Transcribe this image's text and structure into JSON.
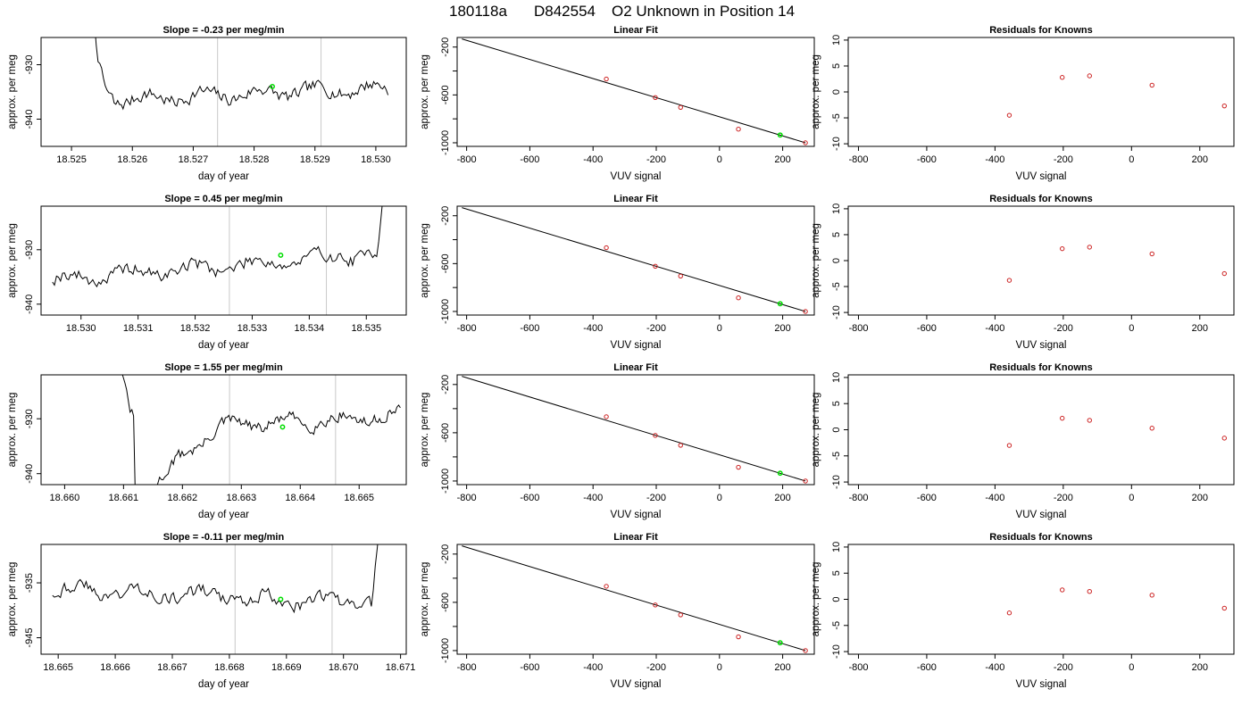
{
  "figure": {
    "header": {
      "run_id": "180118a",
      "sample_id": "D842554",
      "description": "O2 Unknown in Position  14"
    }
  },
  "chart_data": [
    {
      "type": "line",
      "title": "Slope =  -0.23  per meg/min",
      "xlabel": "day of year",
      "ylabel": "approx. per meg",
      "xlim": [
        18.5245,
        18.5305
      ],
      "ylim": [
        -945,
        -925
      ],
      "xticks": [
        18.525,
        18.526,
        18.527,
        18.528,
        18.529,
        18.53
      ],
      "xtick_labels": [
        "18.525",
        "18.526",
        "18.527",
        "18.528",
        "18.529",
        "18.530"
      ],
      "yticks": [
        -940,
        -930
      ],
      "ytick_labels": [
        "-940",
        "-930"
      ],
      "vlines": [
        18.5274,
        18.5291
      ],
      "trace": {
        "start": 18.5252,
        "end": 18.5302,
        "level": -935.5,
        "noise": 1.9,
        "drift": 2.5,
        "transient": "start-high",
        "seed": 7
      },
      "marker": {
        "x": 18.5283,
        "y": -934.0
      }
    },
    {
      "type": "line",
      "title": "Slope =  0.45  per meg/min",
      "xlabel": "day of year",
      "ylabel": "approx. per meg",
      "xlim": [
        18.5293,
        18.5357
      ],
      "ylim": [
        -942,
        -922
      ],
      "xticks": [
        18.53,
        18.531,
        18.532,
        18.533,
        18.534,
        18.535
      ],
      "xtick_labels": [
        "18.530",
        "18.531",
        "18.532",
        "18.533",
        "18.534",
        "18.535"
      ],
      "yticks": [
        -940,
        -930
      ],
      "ytick_labels": [
        "-940",
        "-930"
      ],
      "vlines": [
        18.5326,
        18.5343
      ],
      "trace": {
        "start": 18.5295,
        "end": 18.5355,
        "level": -933.0,
        "noise": 2.0,
        "drift": 5.0,
        "transient": "end-high",
        "seed": 19
      },
      "marker": {
        "x": 18.5335,
        "y": -931.0
      }
    },
    {
      "type": "line",
      "title": "Slope =  1.55  per meg/min",
      "xlabel": "day of year",
      "ylabel": "approx. per meg",
      "xlim": [
        18.6596,
        18.6658
      ],
      "ylim": [
        -942,
        -922
      ],
      "xticks": [
        18.66,
        18.661,
        18.662,
        18.663,
        18.664,
        18.665
      ],
      "xtick_labels": [
        "18.660",
        "18.661",
        "18.662",
        "18.663",
        "18.664",
        "18.665"
      ],
      "yticks": [
        -940,
        -930
      ],
      "ytick_labels": [
        "-940",
        "-930"
      ],
      "vlines": [
        18.6628,
        18.6646
      ],
      "trace": {
        "start": 18.6607,
        "end": 18.6657,
        "level": -931.0,
        "noise": 1.8,
        "drift": 3.0,
        "transient": "ramp-up",
        "seed": 31
      },
      "marker": {
        "x": 18.6637,
        "y": -931.5
      }
    },
    {
      "type": "line",
      "title": "Slope =  -0.11  per meg/min",
      "xlabel": "day of year",
      "ylabel": "approx. per meg",
      "xlim": [
        18.6647,
        18.6711
      ],
      "ylim": [
        -948,
        -928
      ],
      "xticks": [
        18.665,
        18.666,
        18.667,
        18.668,
        18.669,
        18.67,
        18.671
      ],
      "xtick_labels": [
        "18.665",
        "18.666",
        "18.667",
        "18.668",
        "18.669",
        "18.670",
        "18.671"
      ],
      "yticks": [
        -945,
        -935
      ],
      "ytick_labels": [
        "-945",
        "-935"
      ],
      "vlines": [
        18.6681,
        18.6698
      ],
      "trace": {
        "start": 18.6649,
        "end": 18.6708,
        "level": -937.5,
        "noise": 2.0,
        "drift": -3.0,
        "transient": "end-high",
        "seed": 43
      },
      "marker": {
        "x": 18.6689,
        "y": -938.0
      }
    },
    {
      "type": "scatter",
      "title": "Linear Fit",
      "xlabel": "VUV signal",
      "ylabel": "approx. per meg",
      "xlim": [
        -830,
        300
      ],
      "ylim": [
        -1030,
        -120
      ],
      "xticks": [
        -800,
        -600,
        -400,
        -200,
        0,
        200
      ],
      "xtick_labels": [
        "-800",
        "-600",
        "-400",
        "-200",
        "0",
        "200"
      ],
      "yticks": [
        -1000,
        -800,
        -600,
        -400,
        -200
      ],
      "ytick_labels": [
        "-1000",
        "",
        "-600",
        "",
        "-200"
      ],
      "fit_line": {
        "x": [
          -815,
          272
        ],
        "y": [
          -132,
          -1000
        ]
      },
      "knowns": {
        "x": [
          -358,
          -203,
          -123,
          60,
          272
        ],
        "y": [
          -467,
          -622,
          -704,
          -886,
          -1000
        ]
      },
      "unknown": {
        "x": 192,
        "y": -935
      }
    },
    {
      "type": "scatter",
      "title": "Linear Fit",
      "xlabel": "VUV signal",
      "ylabel": "approx. per meg",
      "xlim": [
        -830,
        300
      ],
      "ylim": [
        -1030,
        -120
      ],
      "xticks": [
        -800,
        -600,
        -400,
        -200,
        0,
        200
      ],
      "xtick_labels": [
        "-800",
        "-600",
        "-400",
        "-200",
        "0",
        "200"
      ],
      "yticks": [
        -1000,
        -800,
        -600,
        -400,
        -200
      ],
      "ytick_labels": [
        "-1000",
        "",
        "-600",
        "",
        "-200"
      ],
      "fit_line": {
        "x": [
          -815,
          272
        ],
        "y": [
          -132,
          -1000
        ]
      },
      "knowns": {
        "x": [
          -358,
          -203,
          -123,
          60,
          272
        ],
        "y": [
          -467,
          -622,
          -704,
          -886,
          -1000
        ]
      },
      "unknown": {
        "x": 192,
        "y": -935
      }
    },
    {
      "type": "scatter",
      "title": "Linear Fit",
      "xlabel": "VUV signal",
      "ylabel": "approx. per meg",
      "xlim": [
        -830,
        300
      ],
      "ylim": [
        -1030,
        -120
      ],
      "xticks": [
        -800,
        -600,
        -400,
        -200,
        0,
        200
      ],
      "xtick_labels": [
        "-800",
        "-600",
        "-400",
        "-200",
        "0",
        "200"
      ],
      "yticks": [
        -1000,
        -800,
        -600,
        -400,
        -200
      ],
      "ytick_labels": [
        "-1000",
        "",
        "-600",
        "",
        "-200"
      ],
      "fit_line": {
        "x": [
          -815,
          272
        ],
        "y": [
          -132,
          -1000
        ]
      },
      "knowns": {
        "x": [
          -358,
          -203,
          -123,
          60,
          272
        ],
        "y": [
          -467,
          -622,
          -704,
          -886,
          -1000
        ]
      },
      "unknown": {
        "x": 192,
        "y": -935
      }
    },
    {
      "type": "scatter",
      "title": "Linear Fit",
      "xlabel": "VUV signal",
      "ylabel": "approx. per meg",
      "xlim": [
        -830,
        300
      ],
      "ylim": [
        -1030,
        -120
      ],
      "xticks": [
        -800,
        -600,
        -400,
        -200,
        0,
        200
      ],
      "xtick_labels": [
        "-800",
        "-600",
        "-400",
        "-200",
        "0",
        "200"
      ],
      "yticks": [
        -1000,
        -800,
        -600,
        -400,
        -200
      ],
      "ytick_labels": [
        "-1000",
        "",
        "-600",
        "",
        "-200"
      ],
      "fit_line": {
        "x": [
          -815,
          272
        ],
        "y": [
          -132,
          -1000
        ]
      },
      "knowns": {
        "x": [
          -358,
          -203,
          -123,
          60,
          272
        ],
        "y": [
          -467,
          -622,
          -704,
          -886,
          -1000
        ]
      },
      "unknown": {
        "x": 192,
        "y": -935
      }
    },
    {
      "type": "scatter",
      "title": "Residuals for Knowns",
      "xlabel": "VUV signal",
      "ylabel": "approx. per meg",
      "xlim": [
        -830,
        300
      ],
      "ylim": [
        -10.5,
        10.5
      ],
      "xticks": [
        -800,
        -600,
        -400,
        -200,
        0,
        200
      ],
      "xtick_labels": [
        "-800",
        "-600",
        "-400",
        "-200",
        "0",
        "200"
      ],
      "yticks": [
        -10,
        -5,
        0,
        5,
        10
      ],
      "ytick_labels": [
        "-10",
        "-5",
        "0",
        "5",
        "10"
      ],
      "knowns": {
        "x": [
          -358,
          -203,
          -123,
          60,
          272
        ],
        "y": [
          -4.5,
          2.8,
          3.1,
          1.3,
          -2.7
        ]
      }
    },
    {
      "type": "scatter",
      "title": "Residuals for Knowns",
      "xlabel": "VUV signal",
      "ylabel": "approx. per meg",
      "xlim": [
        -830,
        300
      ],
      "ylim": [
        -10.5,
        10.5
      ],
      "xticks": [
        -800,
        -600,
        -400,
        -200,
        0,
        200
      ],
      "xtick_labels": [
        "-800",
        "-600",
        "-400",
        "-200",
        "0",
        "200"
      ],
      "yticks": [
        -10,
        -5,
        0,
        5,
        10
      ],
      "ytick_labels": [
        "-10",
        "-5",
        "0",
        "5",
        "10"
      ],
      "knowns": {
        "x": [
          -358,
          -203,
          -123,
          60,
          272
        ],
        "y": [
          -3.8,
          2.3,
          2.6,
          1.3,
          -2.5
        ]
      }
    },
    {
      "type": "scatter",
      "title": "Residuals for Knowns",
      "xlabel": "VUV signal",
      "ylabel": "approx. per meg",
      "xlim": [
        -830,
        300
      ],
      "ylim": [
        -10.5,
        10.5
      ],
      "xticks": [
        -800,
        -600,
        -400,
        -200,
        0,
        200
      ],
      "xtick_labels": [
        "-800",
        "-600",
        "-400",
        "-200",
        "0",
        "200"
      ],
      "yticks": [
        -10,
        -5,
        0,
        5,
        10
      ],
      "ytick_labels": [
        "-10",
        "-5",
        "0",
        "5",
        "10"
      ],
      "knowns": {
        "x": [
          -358,
          -203,
          -123,
          60,
          272
        ],
        "y": [
          -3.0,
          2.2,
          1.8,
          0.3,
          -1.6
        ]
      }
    },
    {
      "type": "scatter",
      "title": "Residuals for Knowns",
      "xlabel": "VUV signal",
      "ylabel": "approx. per meg",
      "xlim": [
        -830,
        300
      ],
      "ylim": [
        -10.5,
        10.5
      ],
      "xticks": [
        -800,
        -600,
        -400,
        -200,
        0,
        200
      ],
      "xtick_labels": [
        "-800",
        "-600",
        "-400",
        "-200",
        "0",
        "200"
      ],
      "yticks": [
        -10,
        -5,
        0,
        5,
        10
      ],
      "ytick_labels": [
        "-10",
        "-5",
        "0",
        "5",
        "10"
      ],
      "knowns": {
        "x": [
          -358,
          -203,
          -123,
          60,
          272
        ],
        "y": [
          -2.6,
          1.8,
          1.5,
          0.8,
          -1.7
        ]
      }
    }
  ]
}
